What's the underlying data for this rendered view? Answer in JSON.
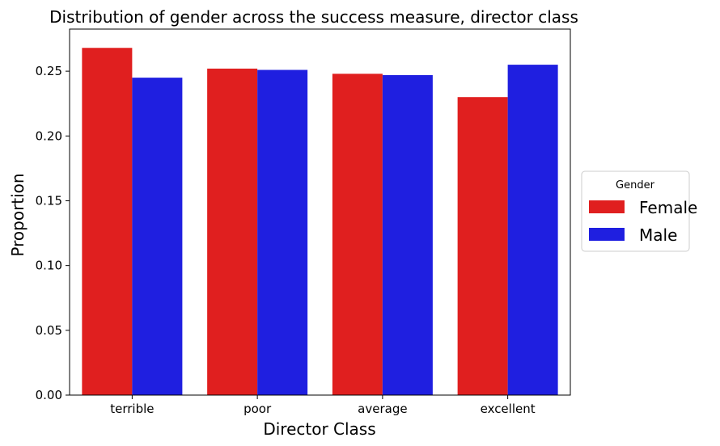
{
  "chart_data": {
    "type": "bar",
    "title": "Distribution of gender across the success measure, director class",
    "xlabel": "Director Class",
    "ylabel": "Proportion",
    "categories": [
      "terrible",
      "poor",
      "average",
      "excellent"
    ],
    "series": [
      {
        "name": "Female",
        "color": "#e01f1f",
        "values": [
          0.268,
          0.252,
          0.248,
          0.23
        ]
      },
      {
        "name": "Male",
        "color": "#1f1fe0",
        "values": [
          0.245,
          0.251,
          0.247,
          0.255
        ]
      }
    ],
    "ylim": [
      0,
      0.2825
    ],
    "yticks": [
      "0.00",
      "0.05",
      "0.10",
      "0.15",
      "0.20",
      "0.25"
    ],
    "legend": {
      "title": "Gender",
      "placement": "center-right outside"
    },
    "grid": false
  }
}
